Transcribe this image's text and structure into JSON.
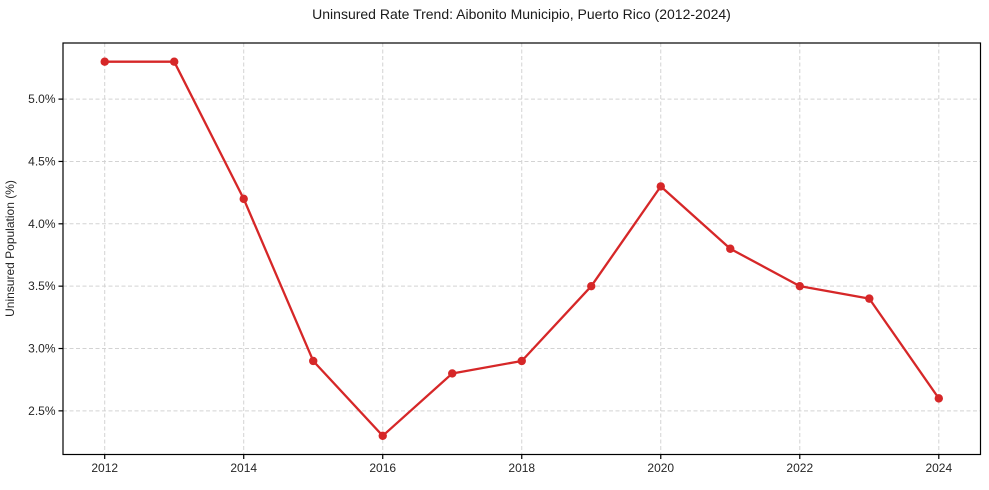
{
  "chart_data": {
    "type": "line",
    "title": "Uninsured Rate Trend: Aibonito Municipio, Puerto Rico (2012-2024)",
    "ylabel": "Uninsured Population (%)",
    "xlabel": "",
    "x": [
      2012,
      2013,
      2014,
      2015,
      2016,
      2017,
      2018,
      2019,
      2020,
      2021,
      2022,
      2023,
      2024
    ],
    "values": [
      5.3,
      5.3,
      4.2,
      2.9,
      2.3,
      2.8,
      2.9,
      3.5,
      4.3,
      3.8,
      3.5,
      3.4,
      2.6
    ],
    "xlim": [
      2011.4,
      2024.6
    ],
    "ylim": [
      2.15,
      5.45
    ],
    "xticks": [
      2012,
      2014,
      2016,
      2018,
      2020,
      2022,
      2024
    ],
    "xtick_labels": [
      "2012",
      "2014",
      "2016",
      "2018",
      "2020",
      "2022",
      "2024"
    ],
    "yticks": [
      2.5,
      3.0,
      3.5,
      4.0,
      4.5,
      5.0
    ],
    "ytick_labels": [
      "2.5%",
      "3.0%",
      "3.5%",
      "4.0%",
      "4.5%",
      "5.0%"
    ],
    "grid": true,
    "legend": "none",
    "line_color": "#d62728",
    "marker": "circle",
    "marker_color": "#d62728",
    "grid_color": "#d3d3d3",
    "spine_color": "#000000",
    "text_color": "#262626",
    "title_color": "#1a1a1a"
  }
}
